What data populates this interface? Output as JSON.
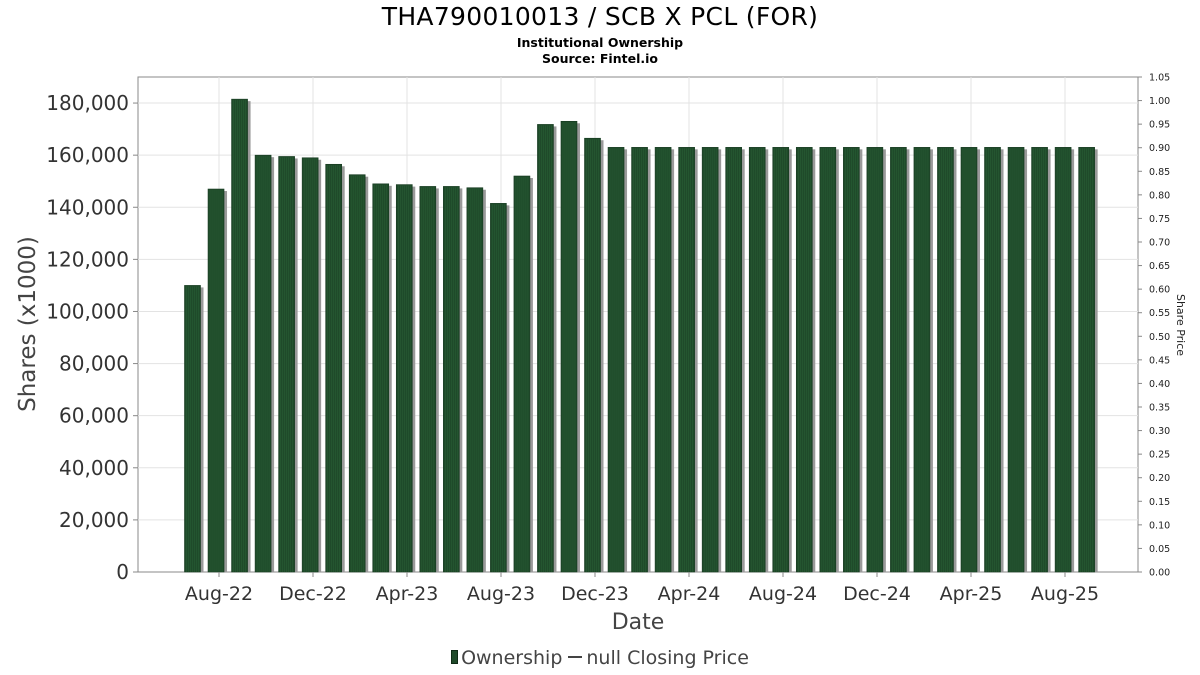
{
  "title": "THA790010013 / SCB X PCL (FOR)",
  "subtitle_1": "Institutional Ownership",
  "subtitle_2": "Source: Fintel.io",
  "legend": {
    "series_1": "Ownership",
    "series_2": "null Closing Price"
  },
  "colors": {
    "bar": "#1f4a2a",
    "bar_shadow": "#9a9a9a",
    "grid": "#e3e3e3",
    "axis": "#888888"
  },
  "chart_data": {
    "type": "bar",
    "xlabel": "Date",
    "ylabel": "Shares (x1000)",
    "y2label": "Share Price",
    "ylim": [
      0,
      190000
    ],
    "y2lim": [
      0,
      1.05
    ],
    "yticks": [
      "0",
      "20,000",
      "40,000",
      "60,000",
      "80,000",
      "100,000",
      "120,000",
      "140,000",
      "160,000",
      "180,000"
    ],
    "y2ticks": [
      "0.00",
      "0.05",
      "0.10",
      "0.15",
      "0.20",
      "0.25",
      "0.30",
      "0.35",
      "0.40",
      "0.45",
      "0.50",
      "0.55",
      "0.60",
      "0.65",
      "0.70",
      "0.75",
      "0.80",
      "0.85",
      "0.90",
      "0.95",
      "1.00",
      "1.05"
    ],
    "xticks": [
      "Aug-22",
      "Dec-22",
      "Apr-23",
      "Aug-23",
      "Dec-23",
      "Apr-24",
      "Aug-24",
      "Dec-24",
      "Apr-25",
      "Aug-25"
    ],
    "grid": true,
    "legend_position": "bottom",
    "series": [
      {
        "name": "Ownership",
        "values": [
          110000,
          147000,
          181500,
          160000,
          159500,
          159000,
          156500,
          152500,
          149000,
          148700,
          148000,
          148000,
          147500,
          141500,
          152000,
          171800,
          173000,
          166500,
          163000,
          163000,
          163000,
          163000,
          163000,
          163000,
          163000,
          163000,
          163000,
          163000,
          163000,
          163000,
          163000,
          163000,
          163000,
          163000,
          163000,
          163000,
          163000,
          163000,
          163000
        ]
      },
      {
        "name": "null Closing Price",
        "values": []
      }
    ]
  }
}
